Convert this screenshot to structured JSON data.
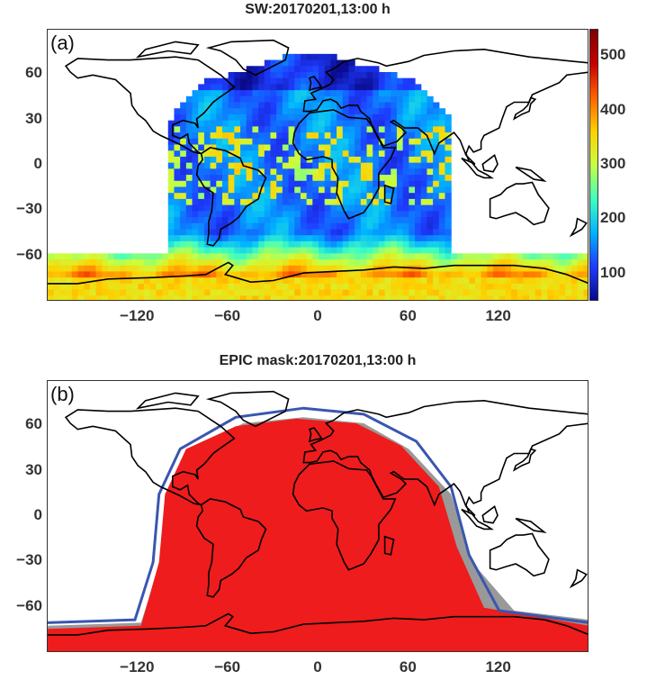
{
  "panels": [
    {
      "label": "(a)",
      "title": "SW:20170201,13:00 h",
      "kind": "shortwave-flux",
      "yticks": [
        60,
        30,
        0,
        -30,
        -60
      ],
      "xticks": [
        -120,
        -60,
        0,
        60,
        120
      ],
      "colorbar": {
        "ticks": [
          100,
          200,
          300,
          400,
          500
        ],
        "min": 50,
        "max": 550,
        "colormap": [
          "#0a0a8c",
          "#1e3cff",
          "#00b4ff",
          "#40ffc0",
          "#c8ff40",
          "#ffd000",
          "#ff6000",
          "#c80000",
          "#800000"
        ]
      }
    },
    {
      "label": "(b)",
      "title": "EPIC mask:20170201,13:00 h",
      "kind": "mask",
      "yticks": [
        60,
        30,
        0,
        -30,
        -60
      ],
      "xticks": [
        -120,
        -60,
        0,
        60,
        120
      ],
      "colors": {
        "mask": "#ee1c1c",
        "gray": "#999999",
        "boundary": "#3a56b0"
      }
    }
  ],
  "axes": {
    "xlim": [
      -180,
      180
    ],
    "ylim": [
      -90,
      90
    ]
  }
}
